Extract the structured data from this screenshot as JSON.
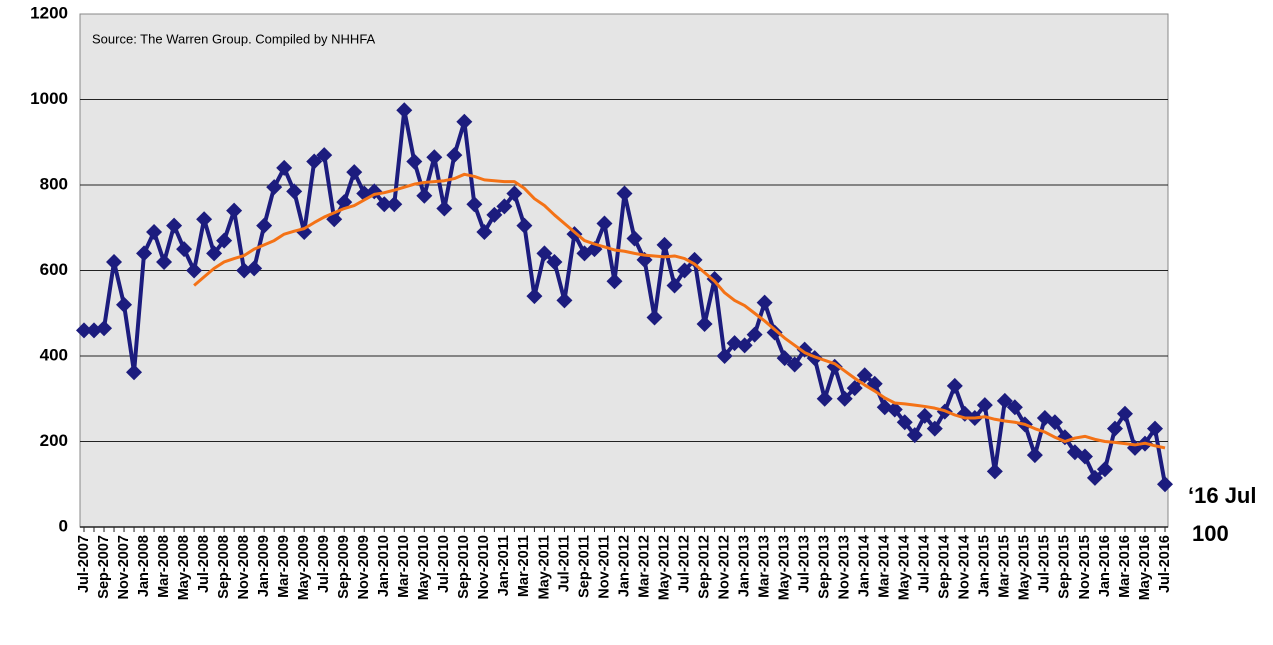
{
  "chart_data": {
    "type": "line",
    "annotations": [
      "Source: The Warren Group. Compiled by NHHFA",
      "‘16 Jul",
      "100"
    ],
    "categories": [
      "Jul-2007",
      null,
      "Sep-2007",
      null,
      "Nov-2007",
      null,
      "Jan-2008",
      null,
      "Mar-2008",
      null,
      "May-2008",
      null,
      "Jul-2008",
      null,
      "Sep-2008",
      null,
      "Nov-2008",
      null,
      "Jan-2009",
      null,
      "Mar-2009",
      null,
      "May-2009",
      null,
      "Jul-2009",
      null,
      "Sep-2009",
      null,
      "Nov-2009",
      null,
      "Jan-2010",
      null,
      "Mar-2010",
      null,
      "May-2010",
      null,
      "Jul-2010",
      null,
      "Sep-2010",
      null,
      "Nov-2010",
      null,
      "Jan-2011",
      null,
      "Mar-2011",
      null,
      "May-2011",
      null,
      "Jul-2011",
      null,
      "Sep-2011",
      null,
      "Nov-2011",
      null,
      "Jan-2012",
      null,
      "Mar-2012",
      null,
      "May-2012",
      null,
      "Jul-2012",
      null,
      "Sep-2012",
      null,
      "Nov-2012",
      null,
      "Jan-2013",
      null,
      "Mar-2013",
      null,
      "May-2013",
      null,
      "Jul-2013",
      null,
      "Sep-2013",
      null,
      "Nov-2013",
      null,
      "Jan-2014",
      null,
      "Mar-2014",
      null,
      "May-2014",
      null,
      "Jul-2014",
      null,
      "Sep-2014",
      null,
      "Nov-2014",
      null,
      "Jan-2015",
      null,
      "Mar-2015",
      null,
      "May-2015",
      null,
      "Jul-2015",
      null,
      "Sep-2015",
      null,
      "Nov-2015",
      null,
      "Jan-2016",
      null,
      "Mar-2016",
      null,
      "May-2016",
      null,
      "Jul-2016"
    ],
    "series": [
      {
        "color": "#1c1c7e",
        "markers": true,
        "values": [
          460,
          460,
          465,
          620,
          520,
          362,
          640,
          690,
          620,
          705,
          650,
          600,
          720,
          640,
          670,
          740,
          600,
          605,
          705,
          795,
          840,
          785,
          690,
          855,
          870,
          720,
          760,
          830,
          780,
          785,
          755,
          755,
          975,
          855,
          775,
          865,
          745,
          870,
          948,
          755,
          690,
          730,
          750,
          780,
          705,
          540,
          640,
          620,
          530,
          685,
          640,
          650,
          710,
          575,
          780,
          675,
          625,
          490,
          660,
          565,
          600,
          625,
          475,
          580,
          400,
          430,
          425,
          450,
          525,
          455,
          395,
          380,
          415,
          395,
          300,
          375,
          300,
          325,
          355,
          335,
          280,
          275,
          245,
          215,
          260,
          230,
          270,
          330,
          265,
          255,
          285,
          130,
          295,
          280,
          240,
          168,
          255,
          245,
          210,
          175,
          165,
          115,
          135,
          230,
          265,
          185,
          195,
          230,
          100
        ]
      },
      {
        "color": "#f47216",
        "markers": false,
        "values": [
          null,
          null,
          null,
          null,
          null,
          null,
          null,
          null,
          null,
          null,
          null,
          565,
          585,
          605,
          620,
          628,
          635,
          650,
          660,
          670,
          685,
          692,
          698,
          712,
          725,
          735,
          745,
          752,
          765,
          778,
          782,
          788,
          795,
          802,
          806,
          808,
          810,
          815,
          825,
          820,
          812,
          810,
          808,
          808,
          792,
          768,
          752,
          730,
          710,
          690,
          670,
          662,
          655,
          648,
          645,
          640,
          636,
          634,
          632,
          634,
          628,
          615,
          595,
          575,
          548,
          530,
          518,
          500,
          482,
          462,
          442,
          425,
          408,
          398,
          390,
          382,
          365,
          348,
          332,
          318,
          302,
          290,
          288,
          285,
          282,
          278,
          272,
          262,
          255,
          255,
          258,
          252,
          248,
          245,
          240,
          230,
          222,
          210,
          200,
          208,
          212,
          205,
          200,
          198,
          195,
          192,
          196,
          190,
          185
        ]
      }
    ],
    "ylim": [
      0,
      1200
    ],
    "yticks": [
      0,
      200,
      400,
      600,
      800,
      1000,
      1200
    ],
    "grid": true
  }
}
